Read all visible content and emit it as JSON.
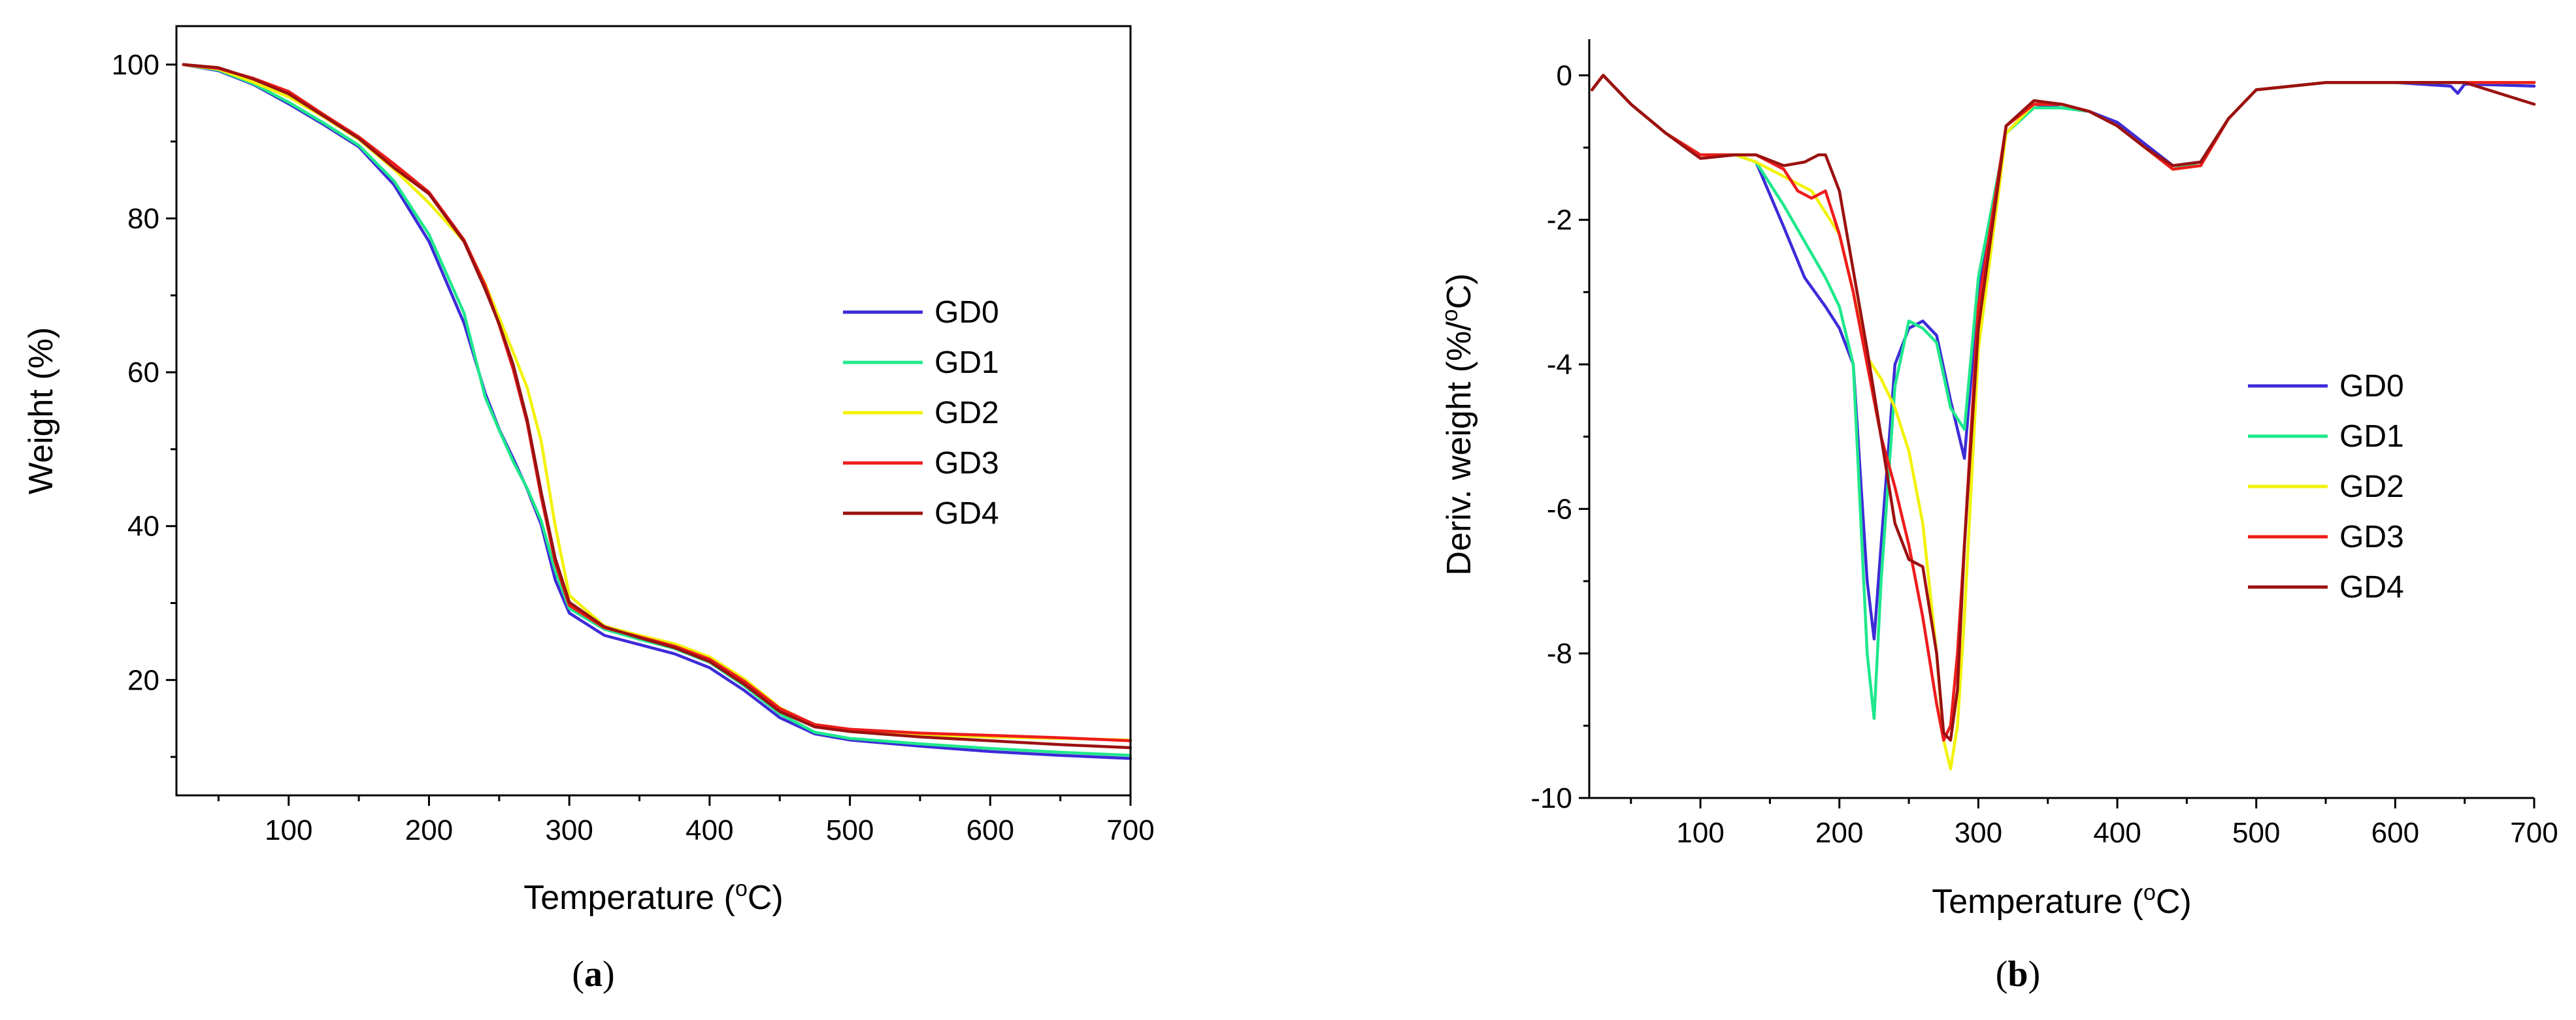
{
  "chart_data": [
    {
      "type": "line",
      "panel_label": "a",
      "title": "",
      "xlabel": "Temperature (°C)",
      "ylabel": "Weight (%)",
      "xlim": [
        20,
        700
      ],
      "ylim": [
        5,
        105
      ],
      "xticks": [
        100,
        200,
        300,
        400,
        500,
        600,
        700
      ],
      "yticks": [
        20,
        40,
        60,
        80,
        100
      ],
      "grid": false,
      "legend_position": "right",
      "series": [
        {
          "name": "GD0",
          "color": "#3c2bd8",
          "x": [
            25,
            50,
            75,
            100,
            125,
            150,
            175,
            200,
            225,
            240,
            250,
            260,
            270,
            280,
            290,
            300,
            325,
            350,
            375,
            400,
            425,
            450,
            475,
            500,
            550,
            600,
            650,
            700
          ],
          "y": [
            100,
            99.2,
            97.4,
            94.9,
            92.2,
            89.3,
            84.4,
            77.0,
            66.4,
            57.3,
            52.6,
            48.8,
            44.8,
            40.2,
            33.0,
            28.7,
            25.8,
            24.6,
            23.4,
            21.6,
            18.6,
            15.1,
            13.0,
            12.2,
            11.4,
            10.7,
            10.2,
            9.8
          ]
        },
        {
          "name": "GD1",
          "color": "#1fe88c",
          "x": [
            25,
            50,
            75,
            100,
            125,
            150,
            175,
            200,
            225,
            240,
            250,
            260,
            270,
            280,
            290,
            300,
            325,
            350,
            375,
            400,
            425,
            450,
            475,
            500,
            550,
            600,
            650,
            700
          ],
          "y": [
            100,
            99.3,
            97.5,
            95.1,
            92.4,
            89.5,
            84.9,
            77.9,
            67.7,
            56.8,
            52.5,
            48.4,
            44.9,
            40.7,
            34.2,
            29.3,
            26.6,
            25.3,
            24.1,
            22.3,
            19.2,
            15.6,
            13.2,
            12.4,
            11.7,
            11.1,
            10.6,
            10.2
          ]
        },
        {
          "name": "GD2",
          "color": "#f2f20a",
          "x": [
            25,
            50,
            75,
            100,
            125,
            150,
            175,
            200,
            225,
            240,
            250,
            260,
            270,
            280,
            290,
            300,
            325,
            350,
            375,
            400,
            425,
            450,
            475,
            500,
            550,
            600,
            650,
            700
          ],
          "y": [
            100,
            99.4,
            97.7,
            95.8,
            93.2,
            90.3,
            86.4,
            82.0,
            77.0,
            71.5,
            67.1,
            62.6,
            58.0,
            51.0,
            40.0,
            31.0,
            27.0,
            25.8,
            24.7,
            23.0,
            20.1,
            16.4,
            14.1,
            13.4,
            12.9,
            12.6,
            12.4,
            12.2
          ]
        },
        {
          "name": "GD3",
          "color": "#ee1c1c",
          "x": [
            25,
            50,
            75,
            100,
            125,
            150,
            175,
            200,
            225,
            240,
            250,
            260,
            270,
            280,
            290,
            300,
            325,
            350,
            375,
            400,
            425,
            450,
            475,
            500,
            550,
            600,
            650,
            700
          ],
          "y": [
            100,
            99.5,
            98.2,
            96.5,
            93.5,
            90.6,
            87.1,
            83.4,
            77.2,
            71.3,
            66.2,
            60.4,
            53.4,
            43.8,
            35.3,
            29.7,
            26.8,
            25.6,
            24.4,
            22.7,
            19.8,
            16.3,
            14.2,
            13.6,
            13.1,
            12.8,
            12.5,
            12.1
          ]
        },
        {
          "name": "GD4",
          "color": "#9b1111",
          "x": [
            25,
            50,
            75,
            100,
            125,
            150,
            175,
            200,
            225,
            240,
            250,
            260,
            270,
            280,
            290,
            300,
            325,
            350,
            375,
            400,
            425,
            450,
            475,
            500,
            550,
            600,
            650,
            700
          ],
          "y": [
            100,
            99.6,
            98.1,
            96.2,
            93.3,
            90.4,
            86.6,
            83.2,
            77.0,
            70.8,
            66.3,
            61.0,
            53.8,
            44.4,
            35.8,
            30.1,
            26.9,
            25.5,
            24.2,
            22.4,
            19.4,
            15.9,
            13.9,
            13.3,
            12.6,
            12.1,
            11.6,
            11.2
          ]
        }
      ]
    },
    {
      "type": "line",
      "panel_label": "b",
      "title": "",
      "xlabel": "Temperature (°C)",
      "ylabel": "Deriv. weight (%/°C)",
      "xlim": [
        20,
        700
      ],
      "ylim": [
        -10,
        0.5
      ],
      "xticks": [
        100,
        200,
        300,
        400,
        500,
        600,
        700
      ],
      "yticks": [
        0,
        -2,
        -4,
        -6,
        -8,
        -10
      ],
      "grid": false,
      "legend_position": "right",
      "series": [
        {
          "name": "GD0",
          "color": "#3c2bd8",
          "x": [
            22,
            30,
            50,
            75,
            100,
            125,
            140,
            160,
            175,
            190,
            200,
            210,
            215,
            220,
            225,
            230,
            240,
            250,
            260,
            270,
            280,
            290,
            300,
            320,
            340,
            360,
            380,
            400,
            420,
            440,
            460,
            480,
            500,
            550,
            600,
            640,
            645,
            650,
            700
          ],
          "y": [
            -0.2,
            0,
            -0.4,
            -0.8,
            -1.1,
            -1.1,
            -1.2,
            -2.1,
            -2.8,
            -3.2,
            -3.5,
            -4.0,
            -5.5,
            -7.0,
            -7.8,
            -6.5,
            -4.0,
            -3.5,
            -3.4,
            -3.6,
            -4.5,
            -5.3,
            -3.0,
            -0.8,
            -0.4,
            -0.45,
            -0.5,
            -0.65,
            -0.95,
            -1.25,
            -1.2,
            -0.6,
            -0.2,
            -0.1,
            -0.1,
            -0.15,
            -0.25,
            -0.12,
            -0.15
          ]
        },
        {
          "name": "GD1",
          "color": "#1fe88c",
          "x": [
            22,
            30,
            50,
            75,
            100,
            125,
            140,
            160,
            175,
            190,
            200,
            210,
            215,
            220,
            225,
            230,
            240,
            250,
            260,
            270,
            280,
            290,
            300,
            320,
            340,
            360,
            380,
            400,
            420,
            440,
            460,
            480,
            500,
            550,
            600,
            650,
            700
          ],
          "y": [
            -0.2,
            0,
            -0.4,
            -0.8,
            -1.1,
            -1.1,
            -1.2,
            -1.8,
            -2.3,
            -2.8,
            -3.2,
            -4.0,
            -6.0,
            -8.0,
            -8.9,
            -7.0,
            -4.3,
            -3.4,
            -3.5,
            -3.7,
            -4.6,
            -4.9,
            -2.8,
            -0.8,
            -0.45,
            -0.45,
            -0.5,
            -0.7,
            -1.0,
            -1.3,
            -1.2,
            -0.6,
            -0.2,
            -0.1,
            -0.1,
            -0.1,
            -0.1
          ]
        },
        {
          "name": "GD2",
          "color": "#f2f20a",
          "x": [
            22,
            30,
            50,
            75,
            100,
            125,
            140,
            160,
            180,
            200,
            210,
            220,
            230,
            240,
            250,
            260,
            270,
            275,
            280,
            285,
            290,
            300,
            320,
            340,
            360,
            380,
            400,
            420,
            440,
            460,
            480,
            500,
            550,
            600,
            650,
            700
          ],
          "y": [
            -0.2,
            0,
            -0.4,
            -0.8,
            -1.1,
            -1.1,
            -1.2,
            -1.4,
            -1.6,
            -2.2,
            -3.0,
            -3.9,
            -4.2,
            -4.6,
            -5.2,
            -6.2,
            -8.0,
            -9.2,
            -9.6,
            -9.0,
            -7.5,
            -3.8,
            -0.8,
            -0.4,
            -0.4,
            -0.5,
            -0.7,
            -1.0,
            -1.3,
            -1.25,
            -0.6,
            -0.2,
            -0.1,
            -0.1,
            -0.1,
            -0.1
          ]
        },
        {
          "name": "GD3",
          "color": "#ee1c1c",
          "x": [
            22,
            30,
            50,
            75,
            100,
            125,
            140,
            160,
            170,
            180,
            190,
            200,
            210,
            220,
            230,
            240,
            250,
            260,
            270,
            275,
            280,
            285,
            290,
            300,
            320,
            340,
            360,
            380,
            400,
            420,
            440,
            460,
            480,
            500,
            550,
            600,
            650,
            700
          ],
          "y": [
            -0.2,
            0,
            -0.4,
            -0.8,
            -1.1,
            -1.1,
            -1.1,
            -1.3,
            -1.6,
            -1.7,
            -1.6,
            -2.2,
            -3.0,
            -4.0,
            -5.0,
            -5.7,
            -6.5,
            -7.5,
            -8.7,
            -9.2,
            -9.0,
            -8.0,
            -6.5,
            -3.2,
            -0.7,
            -0.4,
            -0.4,
            -0.5,
            -0.7,
            -1.0,
            -1.3,
            -1.25,
            -0.6,
            -0.2,
            -0.1,
            -0.1,
            -0.1,
            -0.1
          ]
        },
        {
          "name": "GD4",
          "color": "#9b1111",
          "x": [
            22,
            30,
            50,
            75,
            100,
            125,
            140,
            160,
            175,
            185,
            190,
            200,
            210,
            220,
            230,
            240,
            250,
            260,
            270,
            275,
            280,
            285,
            290,
            300,
            320,
            340,
            360,
            380,
            400,
            420,
            440,
            460,
            480,
            500,
            550,
            600,
            650,
            700
          ],
          "y": [
            -0.2,
            0,
            -0.4,
            -0.8,
            -1.15,
            -1.1,
            -1.1,
            -1.25,
            -1.2,
            -1.1,
            -1.1,
            -1.6,
            -2.7,
            -3.8,
            -5.0,
            -6.2,
            -6.7,
            -6.8,
            -8.0,
            -9.1,
            -9.2,
            -8.5,
            -6.5,
            -3.5,
            -0.7,
            -0.35,
            -0.4,
            -0.5,
            -0.7,
            -1.0,
            -1.25,
            -1.2,
            -0.6,
            -0.2,
            -0.1,
            -0.1,
            -0.1,
            -0.4
          ]
        }
      ]
    }
  ]
}
